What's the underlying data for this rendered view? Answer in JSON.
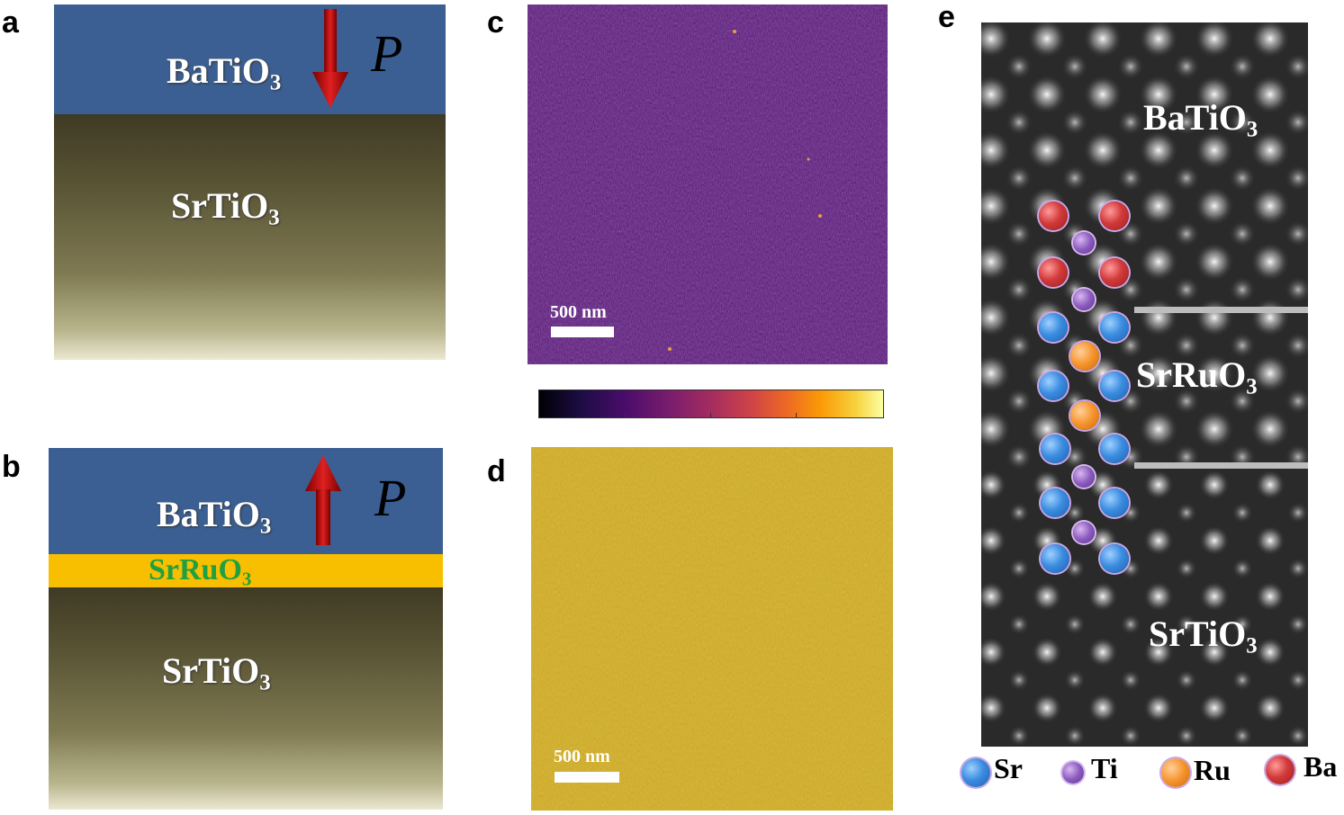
{
  "panel_labels": {
    "a": "a",
    "b": "b",
    "c": "c",
    "d": "d",
    "e": "e"
  },
  "panel_a": {
    "layer_top": {
      "base": "BaTiO",
      "sub": "3"
    },
    "layer_bottom": {
      "base": "SrTiO",
      "sub": "3"
    },
    "polarization_label": "P",
    "polarization_direction": "down"
  },
  "panel_b": {
    "layer_top": {
      "base": "BaTiO",
      "sub": "3"
    },
    "layer_middle": {
      "base": "SrRuO",
      "sub": "3"
    },
    "layer_bottom": {
      "base": "SrTiO",
      "sub": "3"
    },
    "polarization_label": "P",
    "polarization_direction": "up"
  },
  "panel_c": {
    "scale_bar_label": "500 nm"
  },
  "panel_d": {
    "scale_bar_label": "500 nm"
  },
  "panel_e": {
    "layer_top": {
      "base": "BaTiO",
      "sub": "3"
    },
    "layer_middle": {
      "base": "SrRuO",
      "sub": "3"
    },
    "layer_bottom": {
      "base": "SrTiO",
      "sub": "3"
    },
    "legend": [
      {
        "label": "Sr",
        "color": "#3b8de0"
      },
      {
        "label": "Ti",
        "color": "#8c5cbf"
      },
      {
        "label": "Ru",
        "color": "#f5922a"
      },
      {
        "label": "Ba",
        "color": "#d23a3a"
      }
    ]
  },
  "colors": {
    "batio3_layer": "#3b5f92",
    "srruo3_layer": "#f8bf00",
    "srruo3_text": "#20a040",
    "arrow": "#c01010",
    "afm_c": "#4d1a72",
    "afm_d": "#c9a523"
  }
}
